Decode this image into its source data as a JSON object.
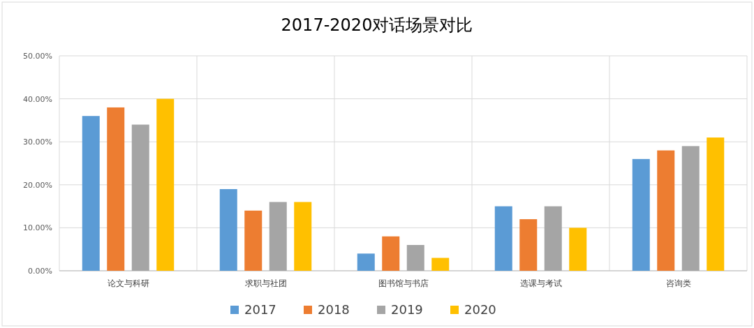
{
  "chart_data": {
    "type": "bar",
    "title": "2017-2020对话场景对比",
    "categories": [
      "论文与科研",
      "求职与社团",
      "图书馆与书店",
      "选课与考试",
      "咨询类"
    ],
    "series": [
      {
        "name": "2017",
        "color": "#5b9bd5",
        "values": [
          36,
          19,
          4,
          15,
          26
        ]
      },
      {
        "name": "2018",
        "color": "#ed7d31",
        "values": [
          38,
          14,
          8,
          12,
          28
        ]
      },
      {
        "name": "2019",
        "color": "#a5a5a5",
        "values": [
          34,
          16,
          6,
          15,
          29
        ]
      },
      {
        "name": "2020",
        "color": "#ffc000",
        "values": [
          40,
          16,
          3,
          10,
          31
        ]
      }
    ],
    "ylim": [
      0,
      50
    ],
    "yticks": [
      {
        "value": 0,
        "label": "0.00%"
      },
      {
        "value": 10,
        "label": "10.00%"
      },
      {
        "value": 20,
        "label": "20.00%"
      },
      {
        "value": 30,
        "label": "30.00%"
      },
      {
        "value": 40,
        "label": "40.00%"
      },
      {
        "value": 50,
        "label": "50.00%"
      }
    ],
    "grid": true,
    "legend": "bottom"
  }
}
